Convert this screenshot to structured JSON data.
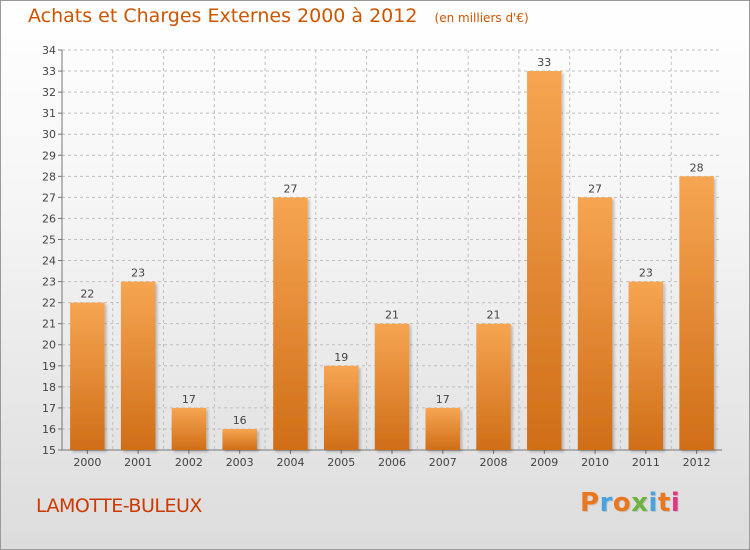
{
  "header": {
    "title": "Achats et Charges Externes 2000 à 2012",
    "unit": "(en milliers d'€)"
  },
  "footer": {
    "commune": "LAMOTTE-BULEUX",
    "logo": "Proxiti"
  },
  "colors": {
    "title": "#cc5500",
    "bar_light": "#f6a552",
    "bar_dark": "#d06e18",
    "grid": "#c0c0c0",
    "logo_letters": [
      "#e8771e",
      "#4aa3df",
      "#e8771e",
      "#6cb33f",
      "#4aa3df",
      "#e8771e",
      "#e5357f"
    ]
  },
  "chart_data": {
    "type": "bar",
    "categories": [
      "2000",
      "2001",
      "2002",
      "2003",
      "2004",
      "2005",
      "2006",
      "2007",
      "2008",
      "2009",
      "2010",
      "2011",
      "2012"
    ],
    "values": [
      22,
      23,
      17,
      16,
      27,
      19,
      21,
      17,
      21,
      33,
      27,
      23,
      28
    ],
    "title": "Achats et Charges Externes 2000 à 2012",
    "xlabel": "",
    "ylabel": "",
    "ylim": [
      15,
      34
    ],
    "ytick_step": 1,
    "grid": true,
    "data_labels": true
  }
}
